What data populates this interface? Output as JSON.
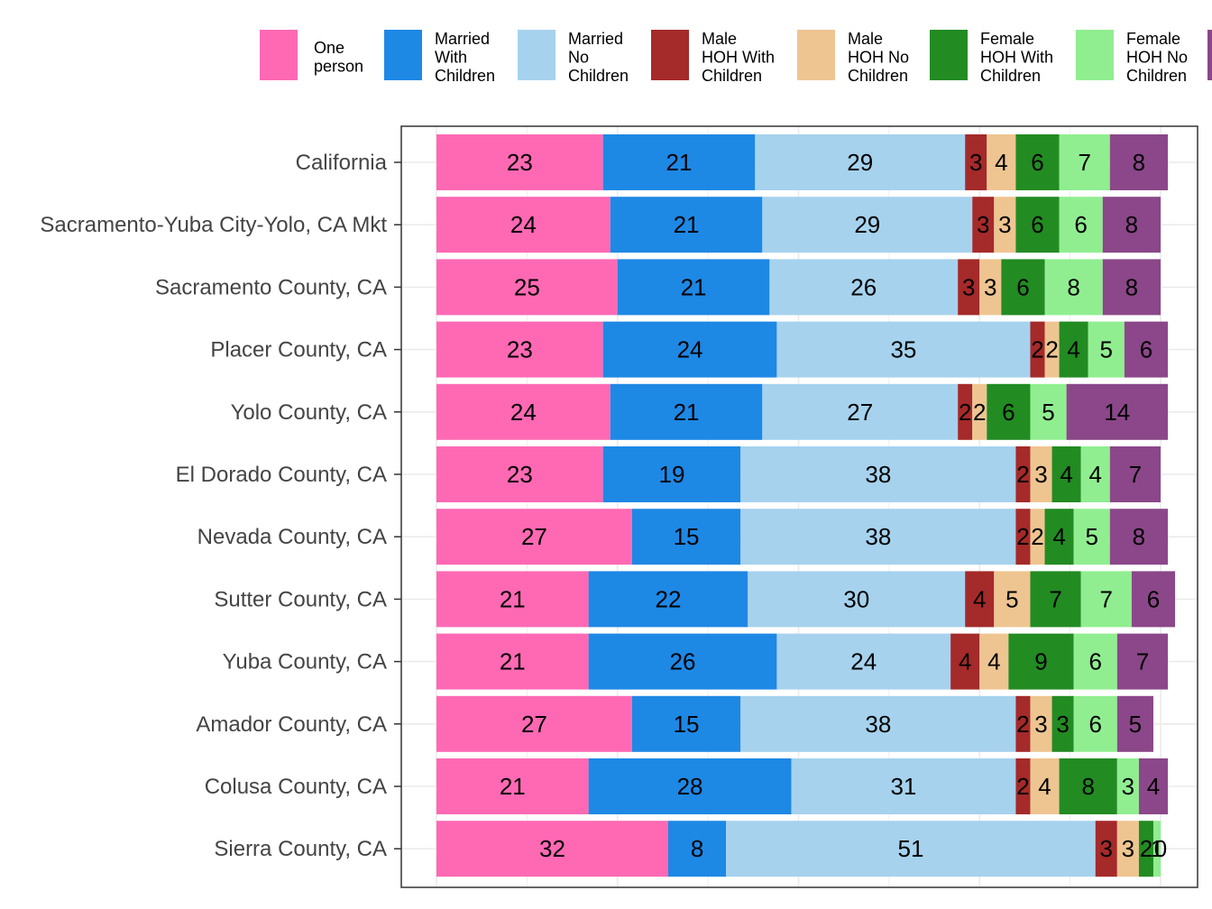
{
  "chart_data": {
    "type": "bar",
    "orientation": "horizontal",
    "stacked": true,
    "title": "",
    "xlabel": "",
    "ylabel": "",
    "xlim": [
      0,
      100
    ],
    "grid": true,
    "legend_position": "top",
    "categories": [
      "California",
      "Sacramento-Yuba City-Yolo, CA Mkt",
      "Sacramento County, CA",
      "Placer County, CA",
      "Yolo County, CA",
      "El Dorado County, CA",
      "Nevada County, CA",
      "Sutter County, CA",
      "Yuba County, CA",
      "Amador County, CA",
      "Colusa County, CA",
      "Sierra County, CA"
    ],
    "series": [
      {
        "name": "One person",
        "legend_lines": [
          "One",
          "person"
        ],
        "color": "#FF69B4",
        "values": [
          23,
          24,
          25,
          23,
          24,
          23,
          27,
          21,
          21,
          27,
          21,
          32
        ]
      },
      {
        "name": "Married With Children",
        "legend_lines": [
          "Married",
          "With",
          "Children"
        ],
        "color": "#1E88E5",
        "values": [
          21,
          21,
          21,
          24,
          21,
          19,
          15,
          22,
          26,
          15,
          28,
          8
        ]
      },
      {
        "name": "Married No Children",
        "legend_lines": [
          "Married",
          "No",
          "Children"
        ],
        "color": "#A6D2EE",
        "values": [
          29,
          29,
          26,
          35,
          27,
          38,
          38,
          30,
          24,
          38,
          31,
          51
        ]
      },
      {
        "name": "Male HOH With Children",
        "legend_lines": [
          "Male",
          "HOH With",
          "Children"
        ],
        "color": "#A52A2A",
        "values": [
          3,
          3,
          3,
          2,
          2,
          2,
          2,
          4,
          4,
          2,
          2,
          3
        ]
      },
      {
        "name": "Male HOH No Children",
        "legend_lines": [
          "Male",
          "HOH No",
          "Children"
        ],
        "color": "#EEC591",
        "values": [
          4,
          3,
          3,
          2,
          2,
          3,
          2,
          5,
          4,
          3,
          4,
          3
        ]
      },
      {
        "name": "Female HOH With Children",
        "legend_lines": [
          "Female",
          "HOH With",
          "Children"
        ],
        "color": "#228B22",
        "values": [
          6,
          6,
          6,
          4,
          6,
          4,
          4,
          7,
          9,
          3,
          8,
          2
        ]
      },
      {
        "name": "Female HOH No Children",
        "legend_lines": [
          "Female",
          "HOH No",
          "Children"
        ],
        "color": "#90EE90",
        "values": [
          7,
          6,
          8,
          5,
          5,
          4,
          5,
          7,
          6,
          6,
          3,
          1
        ]
      },
      {
        "name": "",
        "legend_lines": [],
        "color": "#8B4789",
        "values": [
          8,
          8,
          8,
          6,
          14,
          7,
          8,
          6,
          7,
          5,
          4,
          0
        ]
      }
    ]
  }
}
